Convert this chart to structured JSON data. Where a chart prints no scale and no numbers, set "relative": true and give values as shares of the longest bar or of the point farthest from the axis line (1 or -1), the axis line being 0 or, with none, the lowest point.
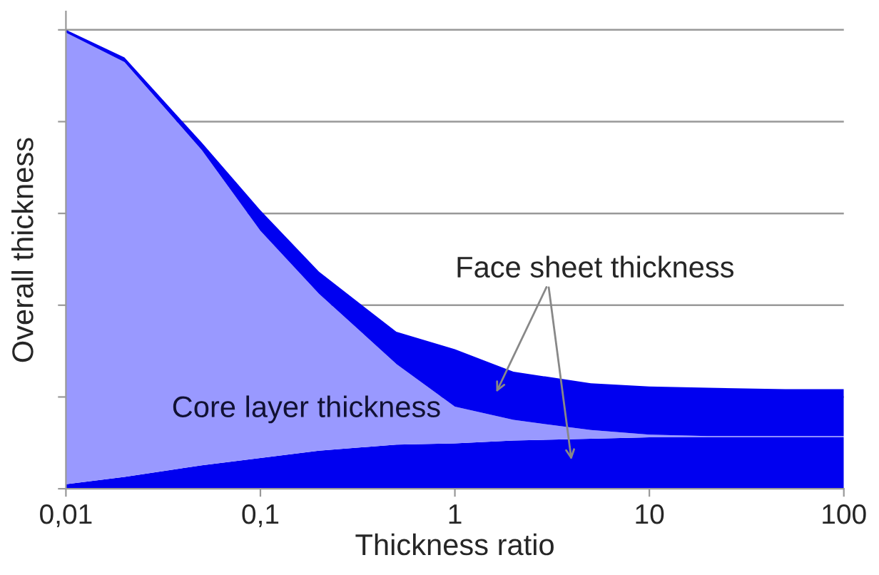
{
  "chart_data": {
    "type": "area",
    "stacked": true,
    "relative": true,
    "log": "x",
    "grid": "y",
    "xlabel": "Thickness ratio",
    "ylabel": "Overall thickness",
    "x": [
      0.01,
      0.02,
      0.05,
      0.1,
      0.2,
      0.5,
      1,
      2,
      5,
      10,
      20,
      50,
      100
    ],
    "xlim": [
      0.01,
      100
    ],
    "xticks": [
      {
        "value": 0.01,
        "label": "0,01"
      },
      {
        "value": 0.1,
        "label": "0,1"
      },
      1,
      10,
      100
    ],
    "series": [
      {
        "color": "#0000f0",
        "values": [
          0.01,
          0.026,
          0.051,
          0.067,
          0.083,
          0.096,
          0.099,
          0.105,
          0.109,
          0.112,
          0.112,
          0.112,
          0.112
        ]
      },
      {
        "name": "Core layer thickness",
        "color": "#9999ff",
        "values": [
          0.984,
          0.904,
          0.687,
          0.495,
          0.342,
          0.176,
          0.08,
          0.045,
          0.019,
          0.006,
          0.003,
          0.003,
          0.003
        ]
      },
      {
        "color": "#0000f0",
        "values": [
          0.006,
          0.01,
          0.016,
          0.045,
          0.048,
          0.07,
          0.125,
          0.105,
          0.102,
          0.105,
          0.105,
          0.102,
          0.102
        ]
      }
    ],
    "annotations": [
      "Face sheet thickness"
    ]
  }
}
